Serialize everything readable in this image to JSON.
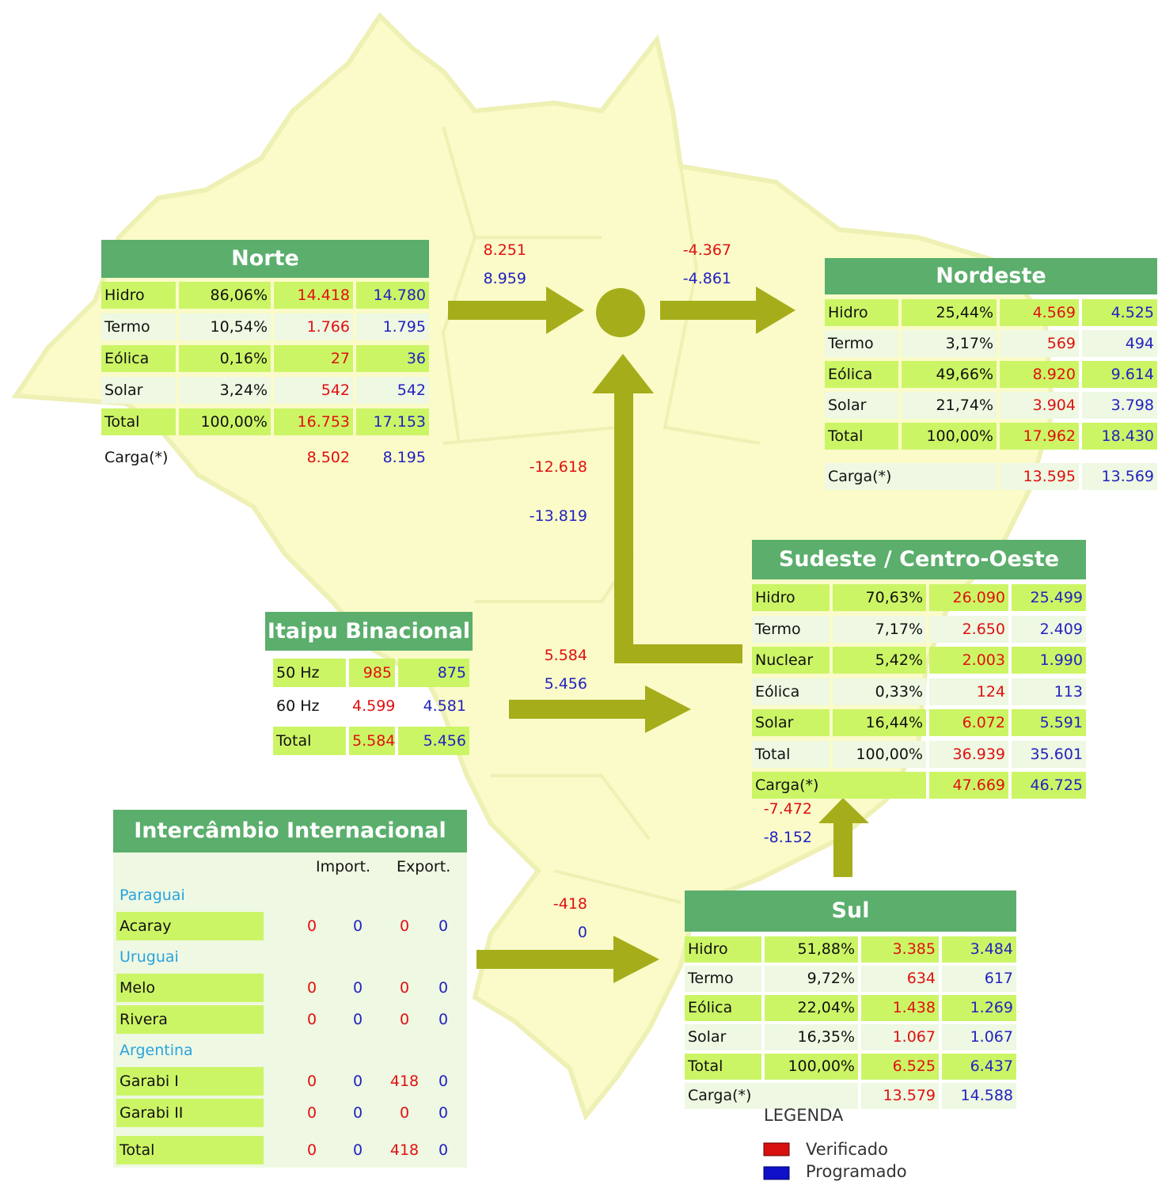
{
  "norte": {
    "title": "Norte",
    "rows": [
      [
        "Hidro",
        "86,06%",
        "14.418",
        "14.780"
      ],
      [
        "Termo",
        "10,54%",
        "1.766",
        "1.795"
      ],
      [
        "Eólica",
        "0,16%",
        "27",
        "36"
      ],
      [
        "Solar",
        "3,24%",
        "542",
        "542"
      ],
      [
        "Total",
        "100,00%",
        "16.753",
        "17.153"
      ]
    ],
    "carga": [
      "Carga(*)",
      "8.502",
      "8.195"
    ]
  },
  "nordeste": {
    "title": "Nordeste",
    "rows": [
      [
        "Hidro",
        "25,44%",
        "4.569",
        "4.525"
      ],
      [
        "Termo",
        "3,17%",
        "569",
        "494"
      ],
      [
        "Eólica",
        "49,66%",
        "8.920",
        "9.614"
      ],
      [
        "Solar",
        "21,74%",
        "3.904",
        "3.798"
      ],
      [
        "Total",
        "100,00%",
        "17.962",
        "18.430"
      ]
    ],
    "carga": [
      "Carga(*)",
      "13.595",
      "13.569"
    ]
  },
  "sudeste": {
    "title": "Sudeste / Centro-Oeste",
    "rows": [
      [
        "Hidro",
        "70,63%",
        "26.090",
        "25.499"
      ],
      [
        "Termo",
        "7,17%",
        "2.650",
        "2.409"
      ],
      [
        "Nuclear",
        "5,42%",
        "2.003",
        "1.990"
      ],
      [
        "Eólica",
        "0,33%",
        "124",
        "113"
      ],
      [
        "Solar",
        "16,44%",
        "6.072",
        "5.591"
      ],
      [
        "Total",
        "100,00%",
        "36.939",
        "35.601"
      ]
    ],
    "carga": [
      "Carga(*)",
      "47.669",
      "46.725"
    ]
  },
  "sul": {
    "title": "Sul",
    "rows": [
      [
        "Hidro",
        "51,88%",
        "3.385",
        "3.484"
      ],
      [
        "Termo",
        "9,72%",
        "634",
        "617"
      ],
      [
        "Eólica",
        "22,04%",
        "1.438",
        "1.269"
      ],
      [
        "Solar",
        "16,35%",
        "1.067",
        "1.067"
      ],
      [
        "Total",
        "100,00%",
        "6.525",
        "6.437"
      ]
    ],
    "carga": [
      "Carga(*)",
      "13.579",
      "14.588"
    ]
  },
  "itaipu": {
    "title": "Itaipu Binacional",
    "rows": [
      [
        "50 Hz",
        "985",
        "875"
      ],
      [
        "60 Hz",
        "4.599",
        "4.581"
      ],
      [
        "Total",
        "5.584",
        "5.456"
      ]
    ]
  },
  "intercambio": {
    "title": "Intercâmbio Internacional",
    "import_label": "Import.",
    "export_label": "Export.",
    "groups": [
      {
        "name": "Paraguai",
        "rows": [
          [
            "Acaray",
            "0",
            "0",
            "0",
            "0"
          ]
        ]
      },
      {
        "name": "Uruguai",
        "rows": [
          [
            "Melo",
            "0",
            "0",
            "0",
            "0"
          ],
          [
            "Rivera",
            "0",
            "0",
            "0",
            "0"
          ]
        ]
      },
      {
        "name": "Argentina",
        "rows": [
          [
            "Garabi I",
            "0",
            "0",
            "418",
            "0"
          ],
          [
            "Garabi II",
            "0",
            "0",
            "0",
            "0"
          ]
        ]
      }
    ],
    "total": [
      "Total",
      "0",
      "0",
      "418",
      "0"
    ]
  },
  "flows": [
    {
      "verified": "8.251",
      "programmed": "8.959"
    },
    {
      "verified": "-4.367",
      "programmed": "-4.861"
    },
    {
      "verified": "-12.618",
      "programmed": "-13.819"
    },
    {
      "verified": "5.584",
      "programmed": "5.456"
    },
    {
      "verified": "-7.472",
      "programmed": "-8.152"
    },
    {
      "verified": "-418",
      "programmed": "0"
    }
  ],
  "legend": {
    "title": "LEGENDA",
    "verified": "Verificado",
    "programmed": "Programado"
  }
}
